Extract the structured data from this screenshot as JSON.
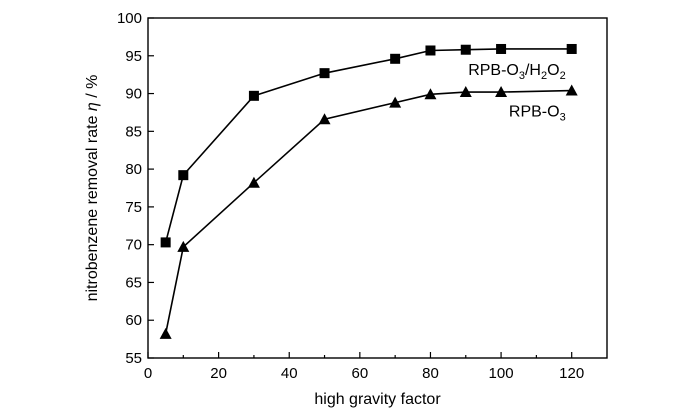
{
  "chart_data": {
    "type": "line",
    "title": "",
    "xlabel": "high gravity factor",
    "ylabel_text": "nitrobenzene removal rate ",
    "ylabel_symbol": "η",
    "ylabel_unit": " / %",
    "xlim": [
      0,
      130
    ],
    "ylim": [
      55,
      100
    ],
    "xticks": [
      0,
      20,
      40,
      60,
      80,
      100,
      120
    ],
    "yticks": [
      55,
      60,
      65,
      70,
      75,
      80,
      85,
      90,
      95,
      100
    ],
    "grid": false,
    "legend": "inline labels near line ends",
    "series": [
      {
        "name": "RPB-O3/H2O2",
        "label_parts": [
          "RPB-O",
          "3",
          "/H",
          "2",
          "O",
          "2"
        ],
        "marker": "square",
        "x": [
          5,
          10,
          30,
          50,
          70,
          80,
          90,
          100,
          120
        ],
        "y": [
          70.3,
          79.2,
          89.7,
          92.7,
          94.6,
          95.7,
          95.8,
          95.9,
          95.9
        ]
      },
      {
        "name": "RPB-O3",
        "label_parts": [
          "RPB-O",
          "3"
        ],
        "marker": "triangle",
        "x": [
          5,
          10,
          30,
          50,
          70,
          80,
          90,
          100,
          120
        ],
        "y": [
          58.2,
          69.7,
          78.2,
          86.6,
          88.8,
          89.9,
          90.2,
          90.2,
          90.4
        ]
      }
    ]
  }
}
